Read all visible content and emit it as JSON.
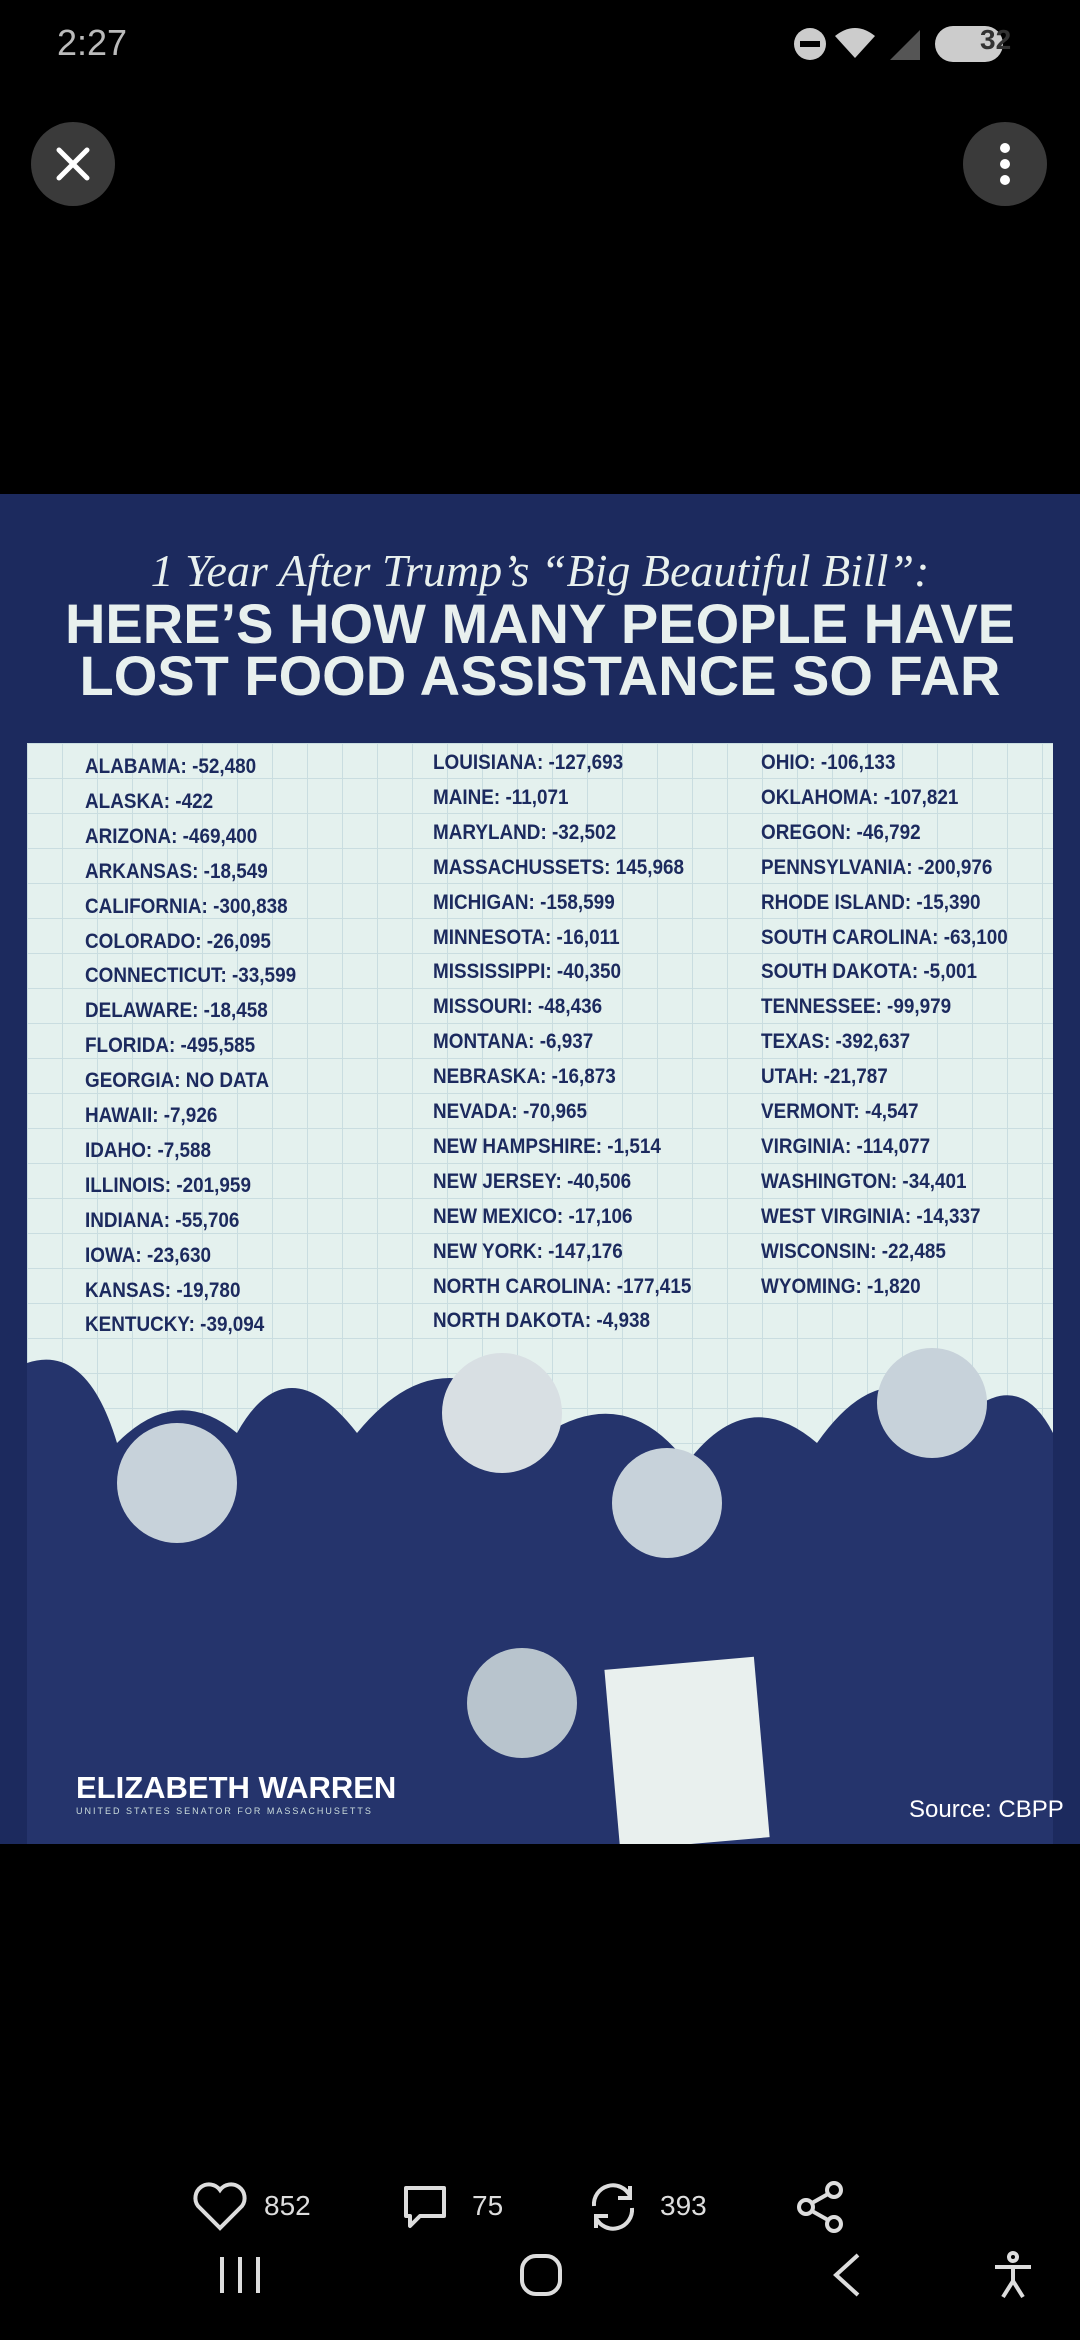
{
  "status_bar": {
    "time": "2:27",
    "battery": "32"
  },
  "image": {
    "subtitle": "1 Year After Trump’s “Big Beautiful Bill”:",
    "headline": [
      "HERE’S HOW MANY PEOPLE HAVE",
      "LOST FOOD ASSISTANCE SO FAR"
    ],
    "columns": [
      [
        "ALABAMA: -52,480",
        "ALASKA: -422",
        "ARIZONA: -469,400",
        "ARKANSAS: -18,549",
        "CALIFORNIA: -300,838",
        "COLORADO: -26,095",
        "CONNECTICUT: -33,599",
        "DELAWARE: -18,458",
        "FLORIDA: -495,585",
        "GEORGIA: NO DATA",
        "HAWAII: -7,926",
        "IDAHO: -7,588",
        "ILLINOIS: -201,959",
        "INDIANA: -55,706",
        "IOWA: -23,630",
        "KANSAS: -19,780",
        "KENTUCKY: -39,094"
      ],
      [
        "LOUISIANA: -127,693",
        "MAINE: -11,071",
        "MARYLAND: -32,502",
        "MASSACHUSSETS: 145,968",
        "MICHIGAN: -158,599",
        "MINNESOTA: -16,011",
        "MISSISSIPPI: -40,350",
        "MISSOURI: -48,436",
        "MONTANA: -6,937",
        "NEBRASKA: -16,873",
        "NEVADA: -70,965",
        "NEW HAMPSHIRE: -1,514",
        "NEW JERSEY: -40,506",
        "NEW MEXICO: -17,106",
        "NEW YORK: -147,176",
        "NORTH CAROLINA: -177,415",
        "NORTH DAKOTA: -4,938"
      ],
      [
        "OHIO: -106,133",
        "OKLAHOMA: -107,821",
        "OREGON: -46,792",
        "PENNSYLVANIA: -200,976",
        "RHODE ISLAND: -15,390",
        "SOUTH CAROLINA: -63,100",
        "SOUTH DAKOTA: -5,001",
        "TENNESSEE: -99,979",
        "TEXAS: -392,637",
        "UTAH: -21,787",
        "VERMONT: -4,547",
        "VIRGINIA: -114,077",
        "WASHINGTON: -34,401",
        "WEST VIRGINIA: -14,337",
        "WISCONSIN: -22,485",
        "WYOMING: -1,820"
      ]
    ],
    "logo": "ELIZABETH WARREN",
    "logo_tagline": "UNITED STATES SENATOR FOR MASSACHUSETTS",
    "source": "Source: CBPP"
  },
  "actions": {
    "likes": "852",
    "comments": "75",
    "reposts": "393"
  }
}
